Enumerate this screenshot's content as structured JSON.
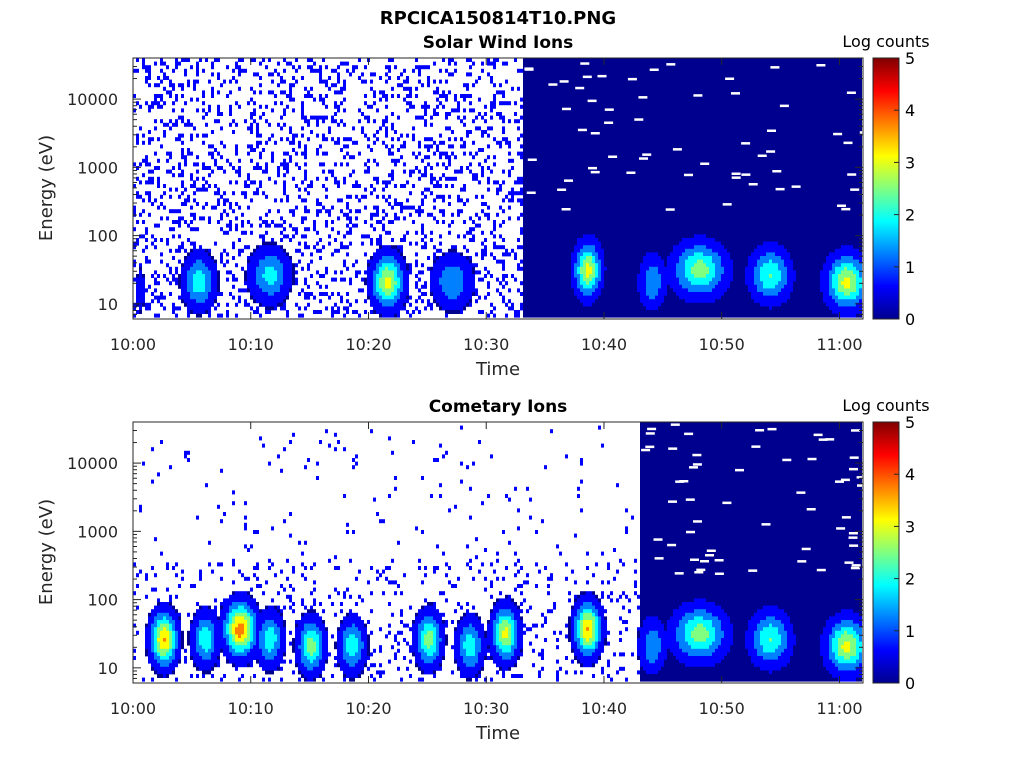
{
  "figure": {
    "title": "RPCICA150814T10.PNG"
  },
  "colormap": [
    "#00008f",
    "#0000ff",
    "#0080ff",
    "#00ffff",
    "#80ff80",
    "#ffff00",
    "#ff8000",
    "#ff0000",
    "#800000"
  ],
  "chart_data": [
    {
      "type": "heatmap",
      "title": "Solar Wind Ions",
      "xlabel": "Time",
      "ylabel": "Energy (eV)",
      "y_scale": "log",
      "xlim": [
        "10:00",
        "11:02"
      ],
      "ylim": [
        6,
        40000
      ],
      "x_ticks": [
        "10:00",
        "10:10",
        "10:20",
        "10:30",
        "10:40",
        "10:50",
        "11:00"
      ],
      "y_ticks": [
        "10",
        "100",
        "1000",
        "10000"
      ],
      "colorbar": {
        "label": "Log counts",
        "range": [
          0,
          5
        ],
        "ticks": [
          "0",
          "1",
          "2",
          "3",
          "4",
          "5"
        ]
      },
      "bursts": [
        {
          "time_min": 0.5,
          "width_min": 0.4,
          "peak_energy_ev": 15,
          "log_counts": 0.6
        },
        {
          "time_min": 5.5,
          "width_min": 1.2,
          "peak_energy_ev": 20,
          "log_counts": 2.0
        },
        {
          "time_min": 11.5,
          "width_min": 1.5,
          "peak_energy_ev": 25,
          "log_counts": 1.8
        },
        {
          "time_min": 21.5,
          "width_min": 1.2,
          "peak_energy_ev": 20,
          "log_counts": 3.0
        },
        {
          "time_min": 27.0,
          "width_min": 1.5,
          "peak_energy_ev": 20,
          "log_counts": 1.5
        },
        {
          "time_min": 38.5,
          "width_min": 1.0,
          "peak_energy_ev": 30,
          "log_counts": 3.0
        },
        {
          "time_min": 44.0,
          "width_min": 1.0,
          "peak_energy_ev": 20,
          "log_counts": 1.5
        },
        {
          "time_min": 48.0,
          "width_min": 2.0,
          "peak_energy_ev": 30,
          "log_counts": 2.5
        },
        {
          "time_min": 54.0,
          "width_min": 1.5,
          "peak_energy_ev": 25,
          "log_counts": 2.2
        },
        {
          "time_min": 60.5,
          "width_min": 1.5,
          "peak_energy_ev": 20,
          "log_counts": 3.0
        }
      ]
    },
    {
      "type": "heatmap",
      "title": "Cometary Ions",
      "xlabel": "Time",
      "ylabel": "Energy (eV)",
      "y_scale": "log",
      "xlim": [
        "10:00",
        "11:02"
      ],
      "ylim": [
        6,
        40000
      ],
      "x_ticks": [
        "10:00",
        "10:10",
        "10:20",
        "10:30",
        "10:40",
        "10:50",
        "11:00"
      ],
      "y_ticks": [
        "10",
        "100",
        "1000",
        "10000"
      ],
      "colorbar": {
        "label": "Log counts",
        "range": [
          0,
          5
        ],
        "ticks": [
          "0",
          "1",
          "2",
          "3",
          "4",
          "5"
        ]
      },
      "bursts": [
        {
          "time_min": 2.5,
          "width_min": 1.0,
          "peak_energy_ev": 25,
          "log_counts": 3.5
        },
        {
          "time_min": 6.0,
          "width_min": 1.0,
          "peak_energy_ev": 25,
          "log_counts": 2.0
        },
        {
          "time_min": 9.0,
          "width_min": 1.2,
          "peak_energy_ev": 35,
          "log_counts": 3.8
        },
        {
          "time_min": 11.5,
          "width_min": 1.0,
          "peak_energy_ev": 25,
          "log_counts": 2.0
        },
        {
          "time_min": 15.0,
          "width_min": 1.0,
          "peak_energy_ev": 20,
          "log_counts": 2.5
        },
        {
          "time_min": 18.5,
          "width_min": 1.0,
          "peak_energy_ev": 20,
          "log_counts": 2.0
        },
        {
          "time_min": 25.0,
          "width_min": 1.0,
          "peak_energy_ev": 25,
          "log_counts": 2.5
        },
        {
          "time_min": 28.5,
          "width_min": 1.0,
          "peak_energy_ev": 20,
          "log_counts": 2.0
        },
        {
          "time_min": 31.5,
          "width_min": 1.0,
          "peak_energy_ev": 30,
          "log_counts": 3.0
        },
        {
          "time_min": 38.5,
          "width_min": 1.0,
          "peak_energy_ev": 35,
          "log_counts": 3.5
        },
        {
          "time_min": 44.0,
          "width_min": 1.0,
          "peak_energy_ev": 20,
          "log_counts": 1.5
        },
        {
          "time_min": 48.0,
          "width_min": 2.0,
          "peak_energy_ev": 30,
          "log_counts": 2.5
        },
        {
          "time_min": 54.0,
          "width_min": 1.5,
          "peak_energy_ev": 25,
          "log_counts": 2.2
        },
        {
          "time_min": 60.5,
          "width_min": 1.5,
          "peak_energy_ev": 20,
          "log_counts": 3.0
        }
      ]
    }
  ]
}
